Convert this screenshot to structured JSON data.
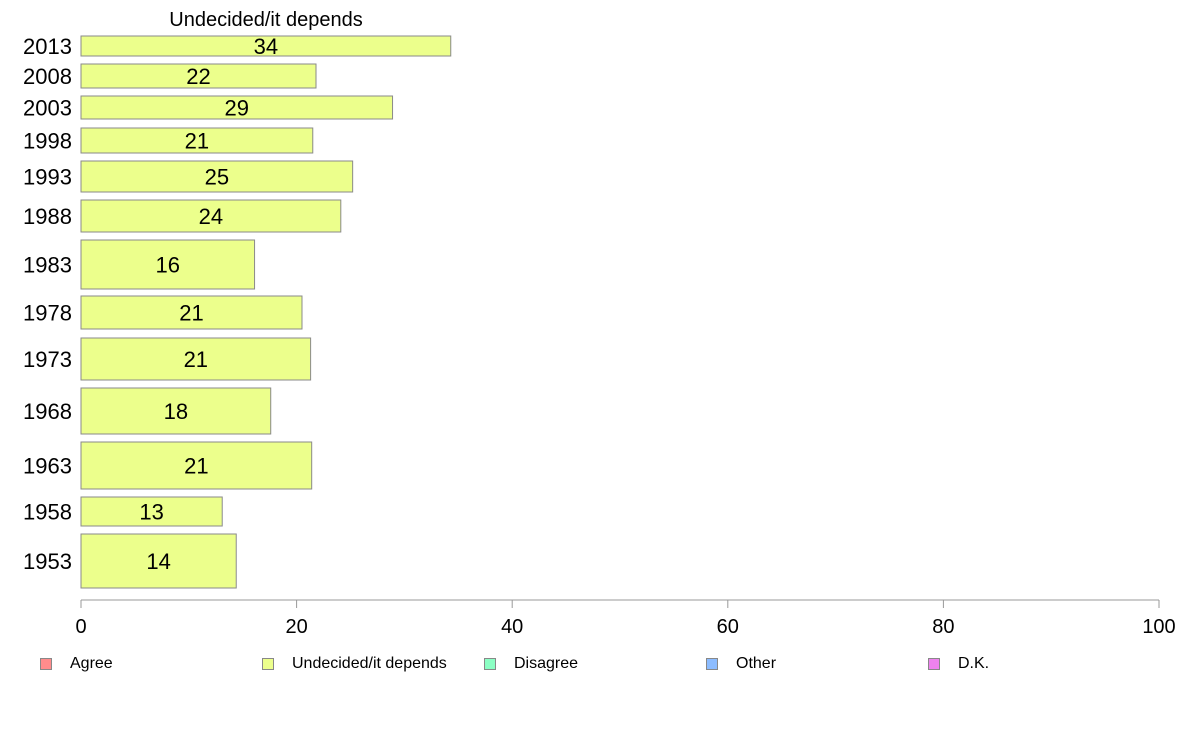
{
  "chart_data": {
    "type": "bar",
    "orientation": "horizontal",
    "title": "Undecided/it depends",
    "categories": [
      "2013",
      "2008",
      "2003",
      "1998",
      "1993",
      "1988",
      "1983",
      "1978",
      "1973",
      "1968",
      "1963",
      "1958",
      "1953"
    ],
    "series": [
      {
        "name": "Undecided/it depends",
        "values": [
          34.3,
          21.8,
          28.9,
          21.5,
          25.2,
          24.1,
          16.1,
          20.5,
          21.3,
          17.6,
          21.4,
          13.1,
          14.4
        ],
        "labels": [
          "34",
          "22",
          "29",
          "21",
          "25",
          "24",
          "16",
          "21",
          "21",
          "18",
          "21",
          "13",
          "14"
        ]
      }
    ],
    "xlim": [
      0,
      100
    ],
    "xticks": [
      "0",
      "20",
      "40",
      "60",
      "80",
      "100"
    ],
    "grid": false,
    "legend_position": "bottom",
    "colors": {
      "bar_fill": "#ecff8c",
      "bar_stroke": "#8a8a8a",
      "axis": "#999999"
    }
  },
  "legend": {
    "items": [
      {
        "label": "Agree",
        "color": "#ff8c8c"
      },
      {
        "label": "Undecided/it depends",
        "color": "#ecff8c"
      },
      {
        "label": "Disagree",
        "color": "#8cffc4"
      },
      {
        "label": "Other",
        "color": "#8cbcff"
      },
      {
        "label": "D.K.",
        "color": "#ee82ee"
      }
    ]
  }
}
